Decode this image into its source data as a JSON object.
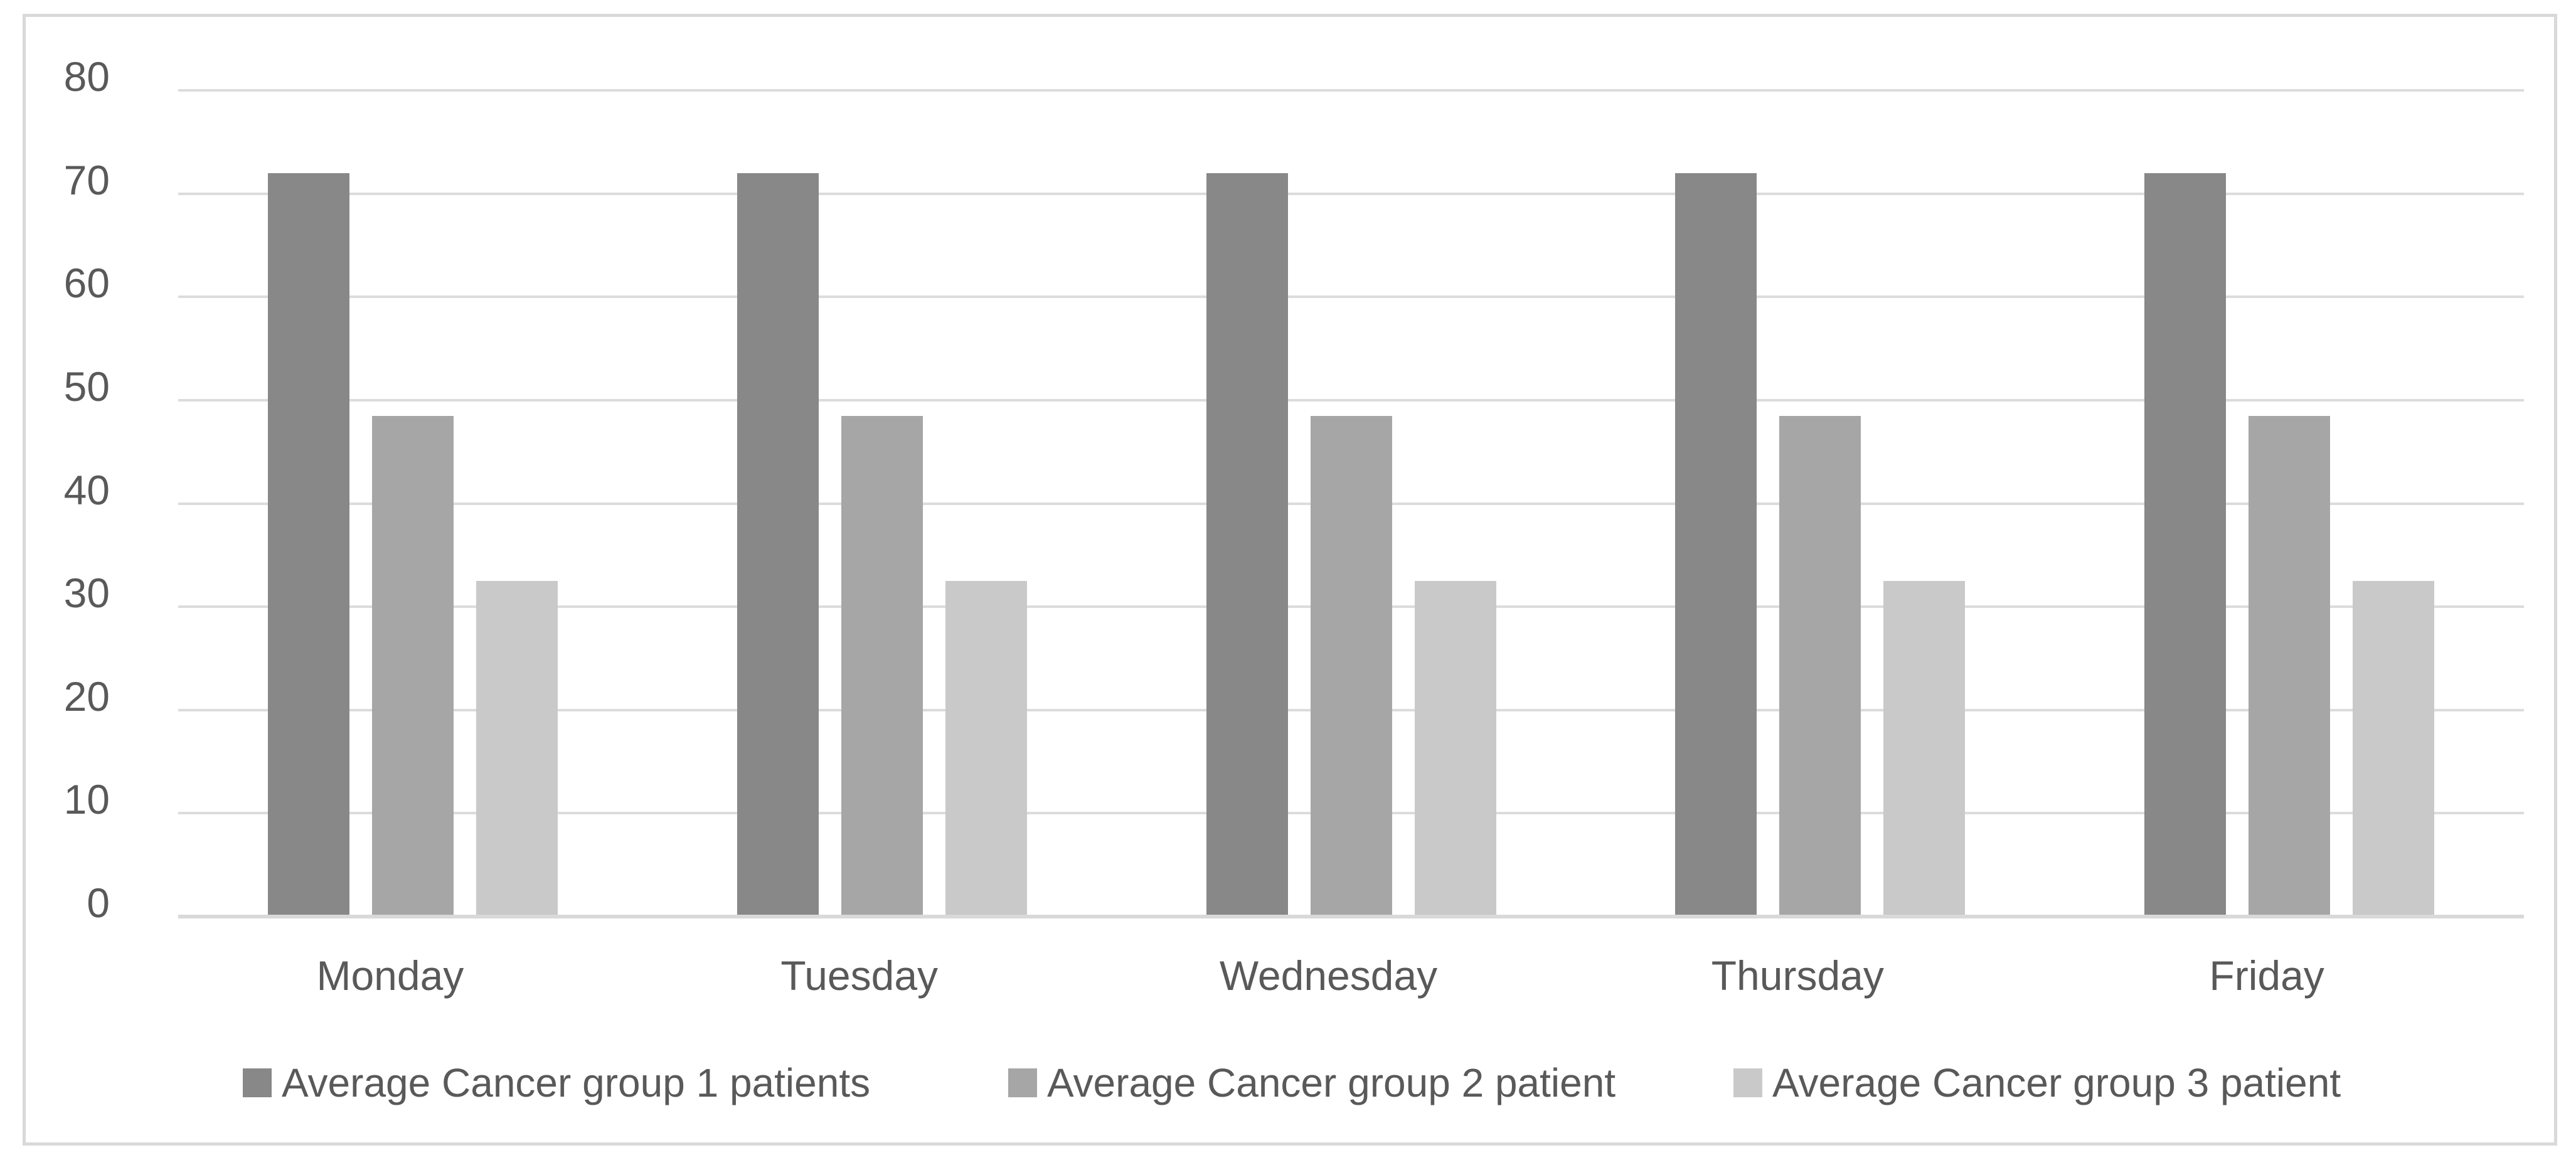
{
  "chart_data": {
    "type": "bar",
    "title": "",
    "xlabel": "",
    "ylabel": "",
    "categories": [
      "Monday",
      "Tuesday",
      "Wednesday",
      "Thursday",
      "Friday"
    ],
    "series": [
      {
        "name": "Average Cancer group 1 patients",
        "color": "#888888",
        "values": [
          72,
          72,
          72,
          72,
          72
        ]
      },
      {
        "name": "Average Cancer group 2 patient",
        "color": "#a6a6a6",
        "values": [
          48.5,
          48.5,
          48.5,
          48.5,
          48.5
        ]
      },
      {
        "name": "Average Cancer group 3 patient",
        "color": "#c9c9c9",
        "values": [
          32.5,
          32.5,
          32.5,
          32.5,
          32.5
        ]
      }
    ],
    "ylim": [
      0,
      80
    ],
    "yticks": [
      0,
      10,
      20,
      30,
      40,
      50,
      60,
      70,
      80
    ],
    "grid": true,
    "legend_position": "bottom",
    "colors": {
      "gridline": "#dcdcdc",
      "axis_line": "#d9d9d9",
      "frame_border": "#d9d9d9",
      "text": "#595959",
      "background": "#ffffff"
    }
  }
}
